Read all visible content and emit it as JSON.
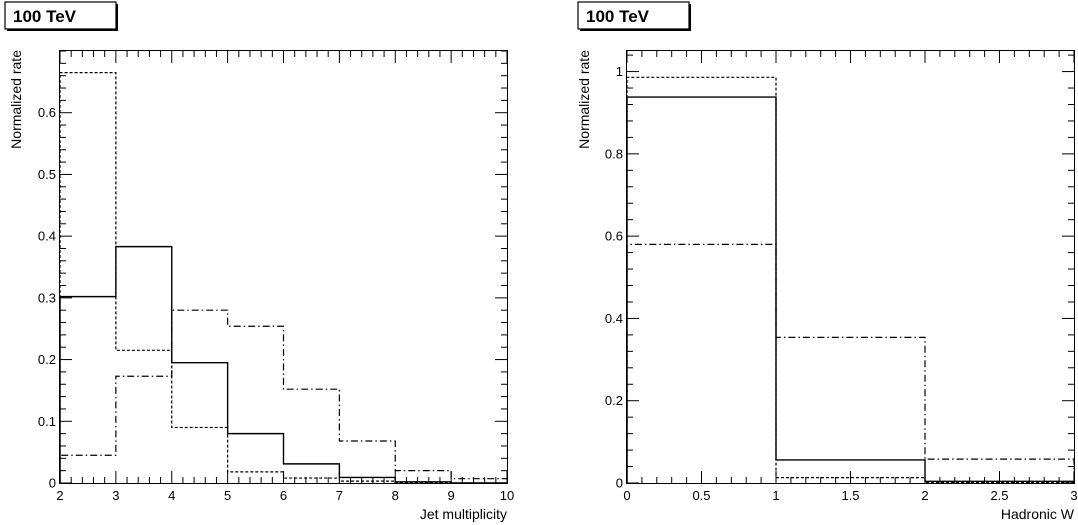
{
  "chart_data": [
    {
      "type": "histogram",
      "badge": "100 TeV",
      "xlabel": "Jet multiplicity",
      "ylabel": "Normalized rate",
      "xlim": [
        2,
        10
      ],
      "ylim": [
        0,
        0.7
      ],
      "grid": false,
      "legend": "none",
      "xticks": [
        2,
        3,
        4,
        5,
        6,
        7,
        8,
        9,
        10
      ],
      "xtick_labels": [
        "2",
        "3",
        "4",
        "5",
        "6",
        "7",
        "8",
        "9",
        "10"
      ],
      "yticks": [
        0,
        0.1,
        0.2,
        0.3,
        0.4,
        0.5,
        0.6
      ],
      "ytick_labels": [
        "0",
        "0.1",
        "0.2",
        "0.3",
        "0.4",
        "0.5",
        "0.6"
      ],
      "bin_edges": [
        2,
        3,
        4,
        5,
        6,
        7,
        8,
        9,
        10
      ],
      "series": [
        {
          "style": "solid",
          "values": [
            0.302,
            0.383,
            0.195,
            0.08,
            0.031,
            0.009,
            0.002,
            0.0
          ]
        },
        {
          "style": "dotted",
          "values": [
            0.665,
            0.215,
            0.09,
            0.018,
            0.008,
            0.003,
            0.001,
            0.0
          ]
        },
        {
          "style": "dashdot",
          "values": [
            0.045,
            0.173,
            0.28,
            0.254,
            0.152,
            0.068,
            0.02,
            0.007
          ]
        }
      ]
    },
    {
      "type": "histogram",
      "badge": "100 TeV",
      "xlabel": "Hadronic W",
      "ylabel": "Normalized rate",
      "xlim": [
        0,
        3
      ],
      "ylim": [
        0,
        1.05
      ],
      "grid": false,
      "legend": "none",
      "xticks": [
        0,
        0.5,
        1,
        1.5,
        2,
        2.5,
        3
      ],
      "xtick_labels": [
        "0",
        "0.5",
        "1",
        "1.5",
        "2",
        "2.5",
        "3"
      ],
      "yticks": [
        0,
        0.2,
        0.4,
        0.6,
        0.8,
        1
      ],
      "ytick_labels": [
        "0",
        "0.2",
        "0.4",
        "0.6",
        "0.8",
        "1"
      ],
      "bin_edges": [
        0,
        1,
        2,
        3
      ],
      "series": [
        {
          "style": "solid",
          "values": [
            0.938,
            0.056,
            0.004
          ]
        },
        {
          "style": "dotted",
          "values": [
            0.986,
            0.013,
            0.001
          ]
        },
        {
          "style": "dashdot",
          "values": [
            0.58,
            0.354,
            0.058
          ]
        }
      ]
    }
  ]
}
